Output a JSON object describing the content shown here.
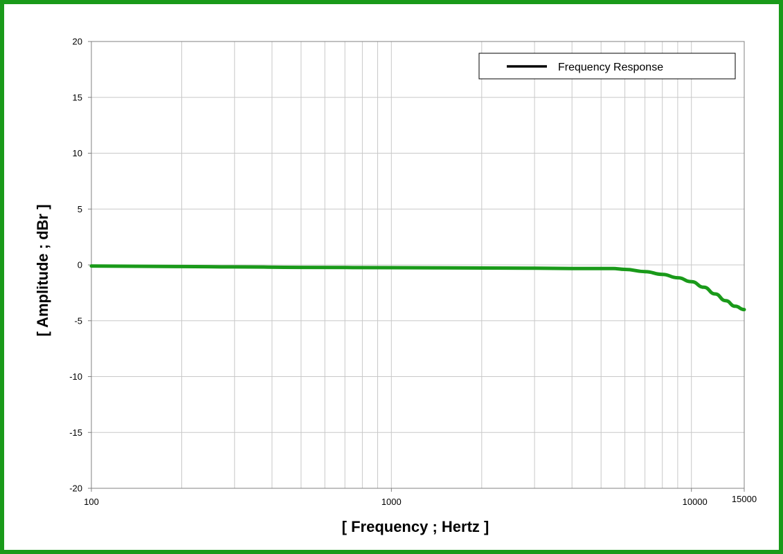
{
  "chart_data": {
    "type": "line",
    "xlabel": "[ Frequency ; Hertz ]",
    "ylabel": "[ Amplitude ; dBr ]",
    "xscale": "log",
    "xlim": [
      100,
      15000
    ],
    "ylim": [
      -20,
      20
    ],
    "x_tick_labels": [
      "100",
      "1000",
      "10000",
      "15000"
    ],
    "y_tick_labels": [
      "20",
      "15",
      "10",
      "5",
      "0",
      "-5",
      "-10",
      "-15",
      "-20"
    ],
    "grid": true,
    "legend": {
      "position": "top-right",
      "entries": [
        "Frequency Response"
      ]
    },
    "legend_line_color": "#000000",
    "series": [
      {
        "name": "Frequency Response",
        "color": "#1a9a1a",
        "x": [
          100,
          200,
          300,
          500,
          1000,
          2000,
          3000,
          4000,
          5000,
          5500,
          6000,
          7000,
          8000,
          9000,
          10000,
          11000,
          12000,
          13000,
          14000,
          15000
        ],
        "y": [
          -0.1,
          -0.15,
          -0.18,
          -0.22,
          -0.25,
          -0.28,
          -0.3,
          -0.32,
          -0.33,
          -0.33,
          -0.4,
          -0.6,
          -0.85,
          -1.15,
          -1.5,
          -2.0,
          -2.6,
          -3.2,
          -3.7,
          -4.0
        ]
      }
    ]
  }
}
